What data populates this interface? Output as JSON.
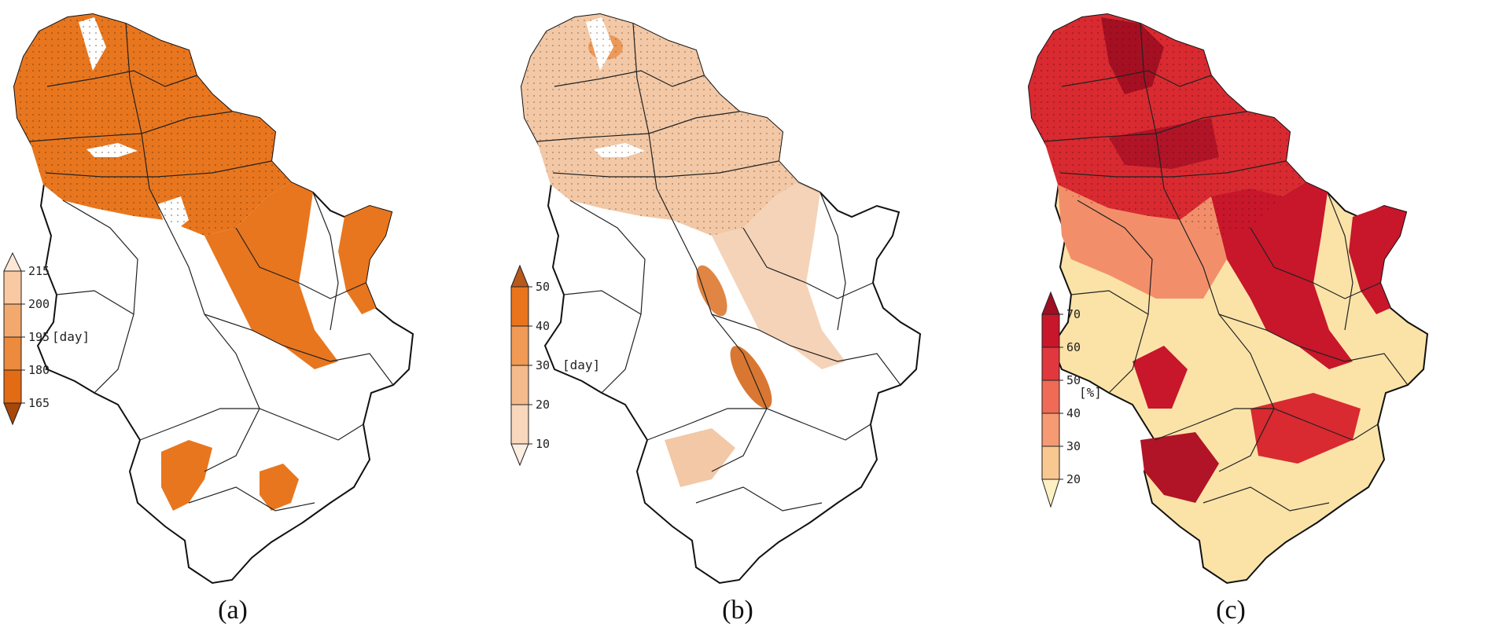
{
  "panels": [
    {
      "id": "a",
      "caption": "(a)",
      "unit": "[day]",
      "colorbar_ticks": [
        "215",
        "200",
        "195",
        "180",
        "165"
      ],
      "colors": {
        "top": "#fde8d6",
        "bands": [
          "#f9c9a3",
          "#f3a96d",
          "#ec8a3e",
          "#e26b14"
        ],
        "bottom": "#a8470a",
        "fill": "#e8761e"
      }
    },
    {
      "id": "b",
      "caption": "(b)",
      "unit": "[day]",
      "colorbar_ticks": [
        "50",
        "40",
        "30",
        "20",
        "10"
      ],
      "colors": {
        "top": "#b8581a",
        "bands": [
          "#e9741c",
          "#f09a55",
          "#f5bb8c",
          "#f8d7bc"
        ],
        "bottom": "#fdeee2",
        "fill": "#f2c8a6"
      }
    },
    {
      "id": "c",
      "caption": "(c)",
      "unit": "[%]",
      "colorbar_ticks": [
        "70",
        "60",
        "50",
        "40",
        "30",
        "20"
      ],
      "colors": {
        "top": "#9e0e24",
        "bands": [
          "#c8162b",
          "#e0383d",
          "#ef6b55",
          "#f59a72",
          "#f9c891"
        ],
        "bottom": "#fdf0c2",
        "fill": "#c9182c"
      }
    }
  ]
}
